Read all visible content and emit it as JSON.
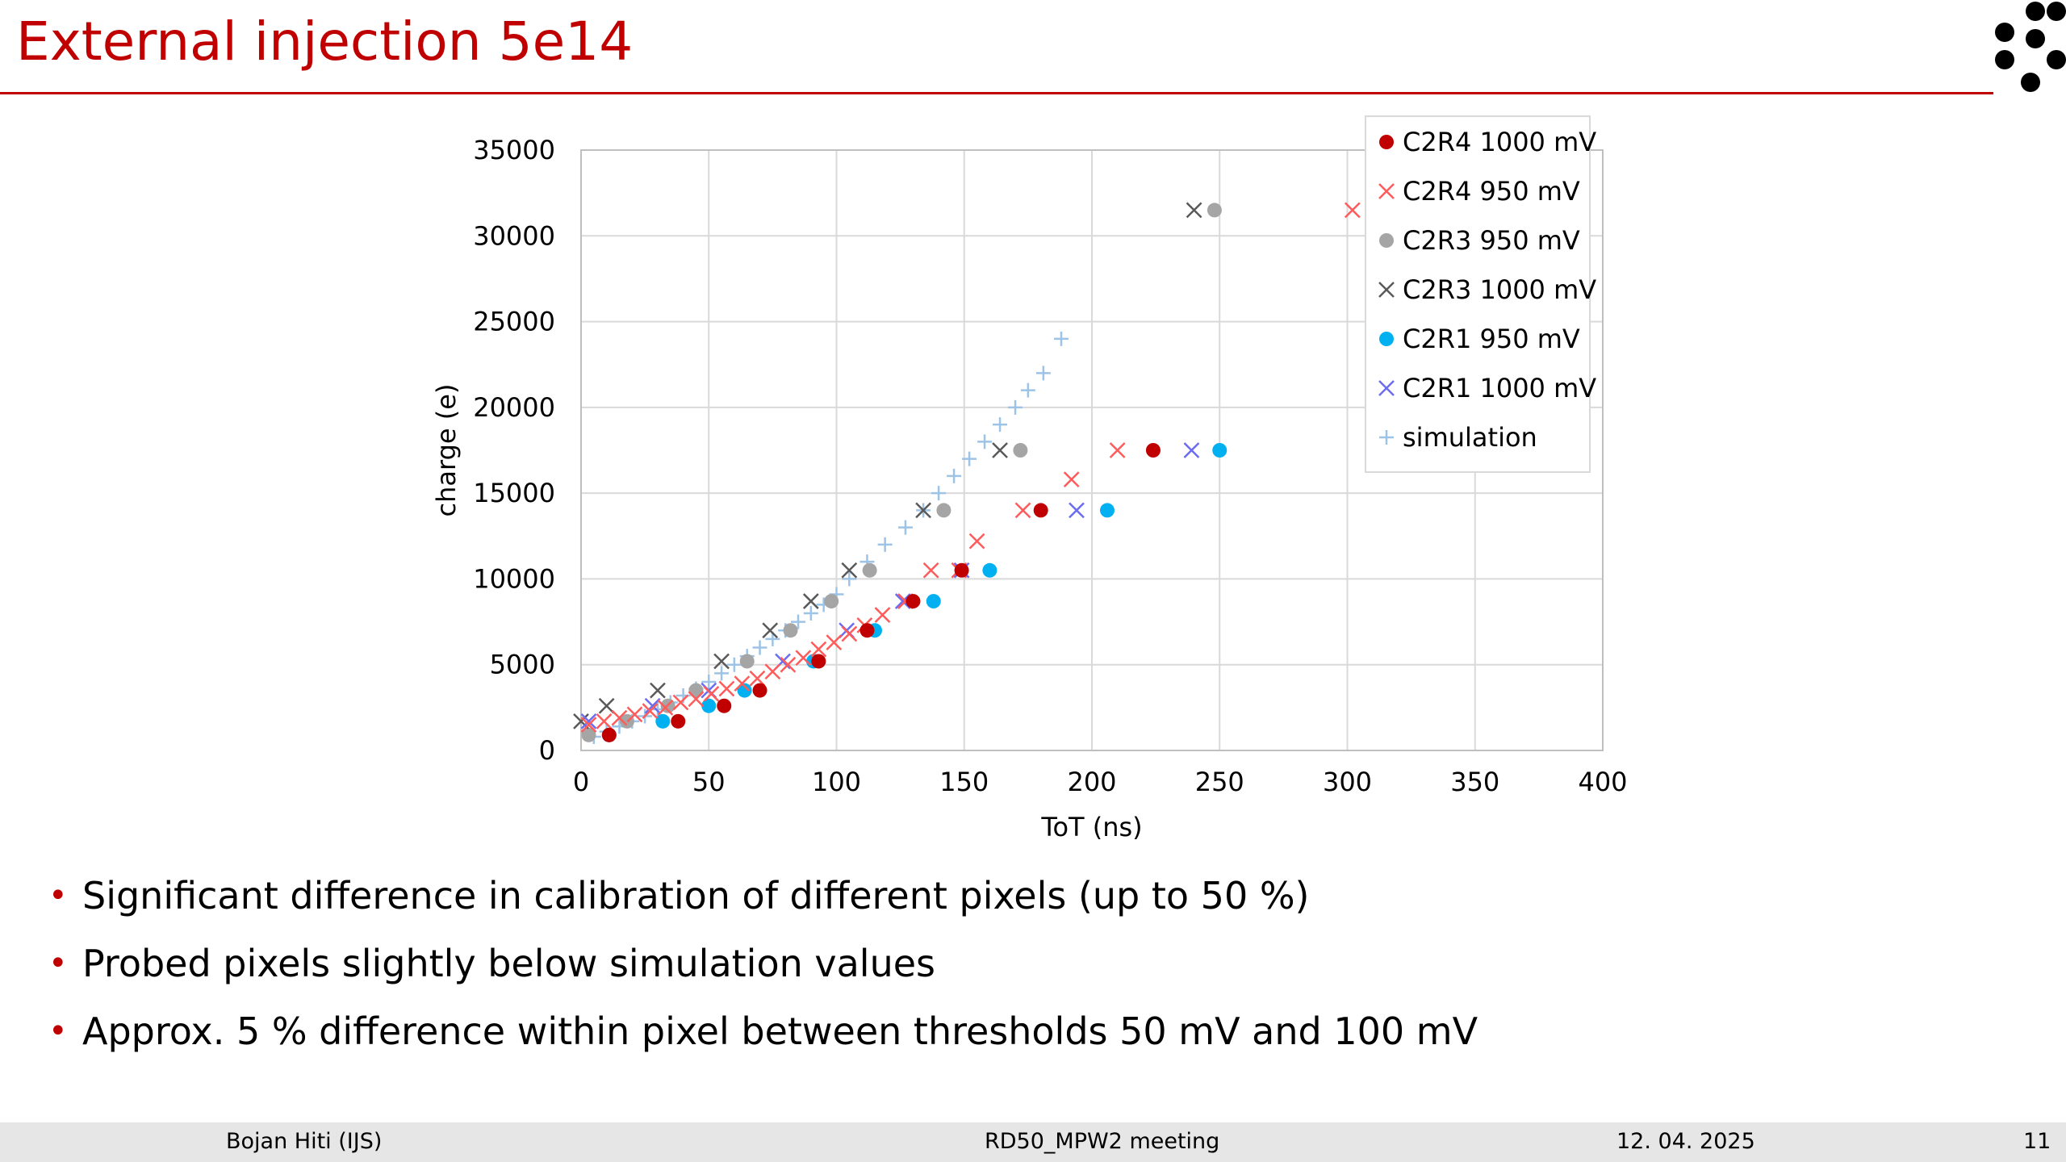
{
  "slide": {
    "title": "External injection 5e14",
    "bullets": [
      "Significant difference in calibration of different pixels (up to 50 %)",
      "Probed pixels slightly below simulation values",
      "Approx. 5 % difference within pixel between thresholds 50 mV and 100 mV"
    ],
    "footer": {
      "author": "Bojan Hiti (IJS)",
      "meeting": "RD50_MPW2 meeting",
      "date": "12. 04. 2025",
      "page": "11"
    },
    "logo_icon": "dot-cluster-logo-icon",
    "accent_color": "#c00000"
  },
  "chart_data": {
    "type": "scatter",
    "xlabel": "ToT (ns)",
    "ylabel": "charge (e)",
    "xlim": [
      0,
      400
    ],
    "ylim": [
      0,
      35000
    ],
    "xticks": [
      0,
      50,
      100,
      150,
      200,
      250,
      300,
      350,
      400
    ],
    "yticks": [
      0,
      5000,
      10000,
      15000,
      20000,
      25000,
      30000,
      35000
    ],
    "grid": true,
    "legend_position": "top-right",
    "series": [
      {
        "name": "C2R4 1000 mV",
        "marker": "circle",
        "color": "#c00000",
        "x": [
          11,
          38,
          56,
          70,
          93,
          112,
          130,
          149,
          180,
          224
        ],
        "y": [
          900,
          1700,
          2600,
          3500,
          5200,
          7000,
          8700,
          10500,
          14000,
          17500
        ]
      },
      {
        "name": "C2R4 950 mV",
        "marker": "x",
        "color": "#ff5b5b",
        "x": [
          3,
          9,
          15,
          21,
          27,
          33,
          39,
          45,
          51,
          57,
          63,
          69,
          75,
          81,
          87,
          93,
          99,
          105,
          111,
          118,
          127,
          137,
          148,
          155,
          173,
          192,
          210,
          302
        ],
        "y": [
          1500,
          1700,
          1900,
          2100,
          2300,
          2500,
          2800,
          3000,
          3300,
          3600,
          3900,
          4200,
          4600,
          5000,
          5400,
          5900,
          6300,
          6800,
          7300,
          7900,
          8700,
          10500,
          10500,
          12200,
          14000,
          15800,
          17500,
          31500
        ]
      },
      {
        "name": "C2R3 950 mV",
        "marker": "circle",
        "color": "#a5a5a5",
        "x": [
          3,
          18,
          34,
          45,
          65,
          82,
          98,
          113,
          142,
          172,
          248
        ],
        "y": [
          900,
          1700,
          2600,
          3500,
          5200,
          7000,
          8700,
          10500,
          14000,
          17500,
          31500
        ]
      },
      {
        "name": "C2R3 1000 mV",
        "marker": "x",
        "color": "#595959",
        "x": [
          0,
          10,
          30,
          55,
          74,
          90,
          105,
          134,
          164,
          240
        ],
        "y": [
          1700,
          2600,
          3500,
          5200,
          7000,
          8700,
          10500,
          14000,
          17500,
          31500
        ]
      },
      {
        "name": "C2R1 950 mV",
        "marker": "circle",
        "color": "#00b0f0",
        "x": [
          11,
          32,
          50,
          64,
          91,
          115,
          138,
          160,
          206,
          250
        ],
        "y": [
          900,
          1700,
          2600,
          3500,
          5200,
          7000,
          8700,
          10500,
          14000,
          17500
        ]
      },
      {
        "name": "C2R1 1000 mV",
        "marker": "x",
        "color": "#6c6cf0",
        "x": [
          3,
          28,
          50,
          79,
          104,
          126,
          149,
          194,
          239
        ],
        "y": [
          1700,
          2600,
          3500,
          5200,
          7000,
          8700,
          10500,
          14000,
          17500
        ]
      },
      {
        "name": "simulation",
        "marker": "plus",
        "color": "#9dc3e6",
        "x": [
          5,
          10,
          15,
          20,
          25,
          30,
          35,
          40,
          45,
          50,
          55,
          60,
          65,
          70,
          75,
          80,
          85,
          90,
          95,
          100,
          105,
          112,
          119,
          127,
          134,
          140,
          146,
          152,
          158,
          164,
          170,
          175,
          181,
          188
        ],
        "y": [
          800,
          1100,
          1400,
          1700,
          2000,
          2400,
          2800,
          3200,
          3600,
          4000,
          4500,
          5000,
          5500,
          6000,
          6500,
          7000,
          7500,
          8000,
          8500,
          9100,
          10000,
          11000,
          12000,
          13000,
          14000,
          15000,
          16000,
          17000,
          18000,
          19000,
          20000,
          21000,
          22000,
          24000
        ]
      }
    ]
  }
}
